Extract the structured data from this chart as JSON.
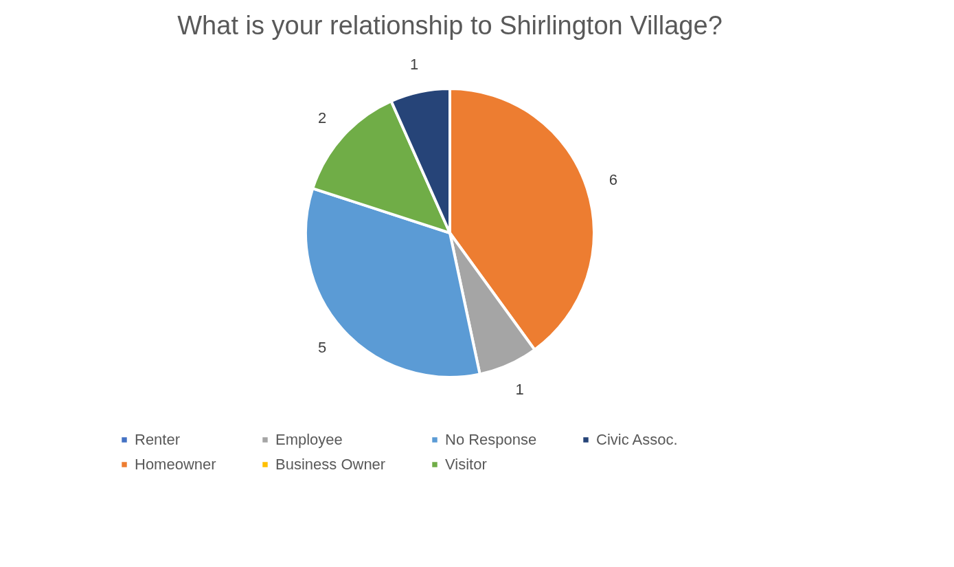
{
  "chart_data": {
    "type": "pie",
    "title": "What is your relationship to Shirlington Village?",
    "categories": [
      "Renter",
      "Homeowner",
      "Employee",
      "Business Owner",
      "No Response",
      "Visitor",
      "Civic Assoc."
    ],
    "values": [
      0,
      6,
      1,
      0,
      5,
      2,
      1
    ],
    "colors": [
      "#4472c4",
      "#ed7d31",
      "#a5a5a5",
      "#ffc000",
      "#5b9bd5",
      "#70ad47",
      "#264478"
    ],
    "value_labels": [
      null,
      "6",
      "1",
      null,
      "5",
      "2",
      "1"
    ],
    "legend": "bottom"
  }
}
